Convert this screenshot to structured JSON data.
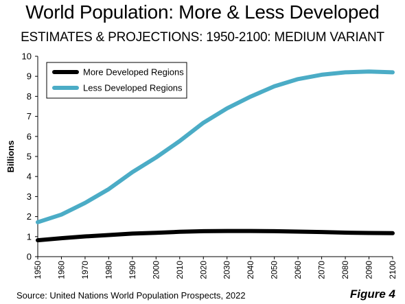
{
  "header": {
    "title": "World Population: More & Less Developed",
    "subtitle": "ESTIMATES & PROJECTIONS: 1950-2100: MEDIUM VARIANT"
  },
  "footer": {
    "source": "Source: United Nations World Population Prospects, 2022",
    "figure": "Figure 4"
  },
  "colors": {
    "more_developed": "#000000",
    "less_developed": "#4bacc6"
  },
  "chart_data": {
    "type": "line",
    "title": "World Population: More & Less Developed",
    "subtitle": "ESTIMATES & PROJECTIONS: 1950-2100: MEDIUM VARIANT",
    "xlabel": "",
    "ylabel": "Billions",
    "xlim": [
      1950,
      2100
    ],
    "ylim": [
      0,
      10
    ],
    "yticks": [
      "0",
      "1",
      "2",
      "3",
      "4",
      "5",
      "6",
      "7",
      "8",
      "9",
      "10"
    ],
    "xticks": [
      "1950",
      "1960",
      "1970",
      "1980",
      "1990",
      "2000",
      "2010",
      "2020",
      "2030",
      "2040",
      "2050",
      "2060",
      "2070",
      "2080",
      "2090",
      "2100"
    ],
    "grid": false,
    "legend_position": "top-left",
    "x": [
      1950,
      1960,
      1970,
      1980,
      1990,
      2000,
      2010,
      2020,
      2030,
      2040,
      2050,
      2060,
      2070,
      2080,
      2090,
      2100
    ],
    "series": [
      {
        "name": "More Developed Regions",
        "color": "#000000",
        "values": [
          0.82,
          0.92,
          1.01,
          1.08,
          1.15,
          1.19,
          1.24,
          1.27,
          1.28,
          1.28,
          1.27,
          1.25,
          1.23,
          1.2,
          1.18,
          1.17
        ]
      },
      {
        "name": "Less Developed Regions",
        "color": "#4bacc6",
        "values": [
          1.72,
          2.1,
          2.68,
          3.37,
          4.22,
          4.95,
          5.77,
          6.68,
          7.4,
          7.99,
          8.5,
          8.86,
          9.08,
          9.2,
          9.24,
          9.2
        ]
      }
    ]
  }
}
